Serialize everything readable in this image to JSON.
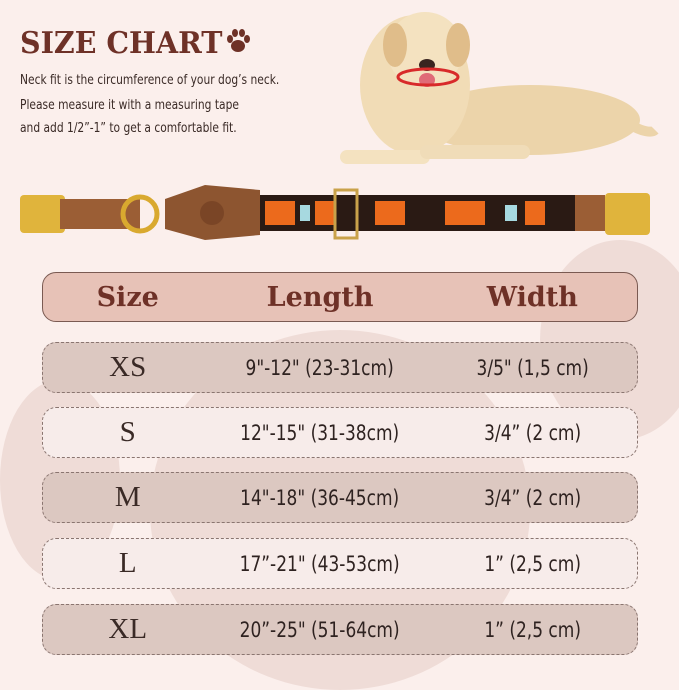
{
  "title": "SIZE CHART",
  "description": [
    "Neck fit is the circumference of your dog’s neck.",
    "Please measure it with a measuring tape",
    " and add 1/2”-1” to get a comfortable fit."
  ],
  "colors": {
    "title": "#6e3127",
    "header_bg": "#e7c2b7",
    "row_dark": "#dcc8c1",
    "row_light": "#f7ecea",
    "background": "#fbefec"
  },
  "table": {
    "headers": [
      "Size",
      "Length",
      "Width"
    ],
    "rows": [
      {
        "size": "XS",
        "length": "9\"-12\" (23-31cm)",
        "width": "3/5\" (1,5 cm)"
      },
      {
        "size": "S",
        "length": "12\"-15\" (31-38cm)",
        "width": "3/4” (2 cm)"
      },
      {
        "size": "M",
        "length": "14\"-18\" (36-45cm)",
        "width": "3/4” (2 cm)"
      },
      {
        "size": "L",
        "length": "17”-21\" (43-53cm)",
        "width": "1”  (2,5 cm)"
      },
      {
        "size": "XL",
        "length": "20”-25\" (51-64cm)",
        "width": "1”  (2,5 cm)"
      }
    ]
  }
}
